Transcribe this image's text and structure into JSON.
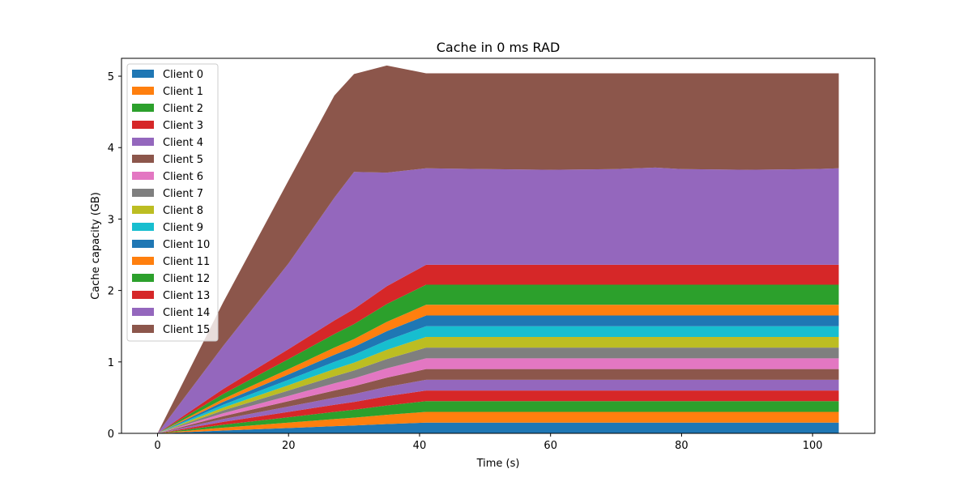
{
  "chart_data": {
    "type": "area",
    "stacked": true,
    "title": "Cache in  0 ms RAD",
    "xlabel": "Time (s)",
    "ylabel": "Cache capacity (GB)",
    "xlim": [
      -5.5,
      109.5
    ],
    "ylim": [
      0,
      5.25
    ],
    "xticks": [
      0,
      20,
      40,
      60,
      80,
      100
    ],
    "yticks": [
      0,
      1,
      2,
      3,
      4,
      5
    ],
    "grid": false,
    "legend": "upper-left",
    "x": [
      0,
      10,
      20,
      27,
      30,
      35,
      41,
      50,
      60,
      70,
      76,
      80,
      90,
      100,
      104
    ],
    "series": [
      {
        "name": "Client 0",
        "color": "#1f77b4",
        "values": [
          0,
          0.04,
          0.075,
          0.1,
          0.11,
          0.13,
          0.15,
          0.15,
          0.15,
          0.15,
          0.15,
          0.15,
          0.15,
          0.15,
          0.15
        ]
      },
      {
        "name": "Client 1",
        "color": "#ff7f0e",
        "values": [
          0,
          0.04,
          0.075,
          0.1,
          0.11,
          0.13,
          0.15,
          0.15,
          0.15,
          0.15,
          0.15,
          0.15,
          0.15,
          0.15,
          0.15
        ]
      },
      {
        "name": "Client 2",
        "color": "#2ca02c",
        "values": [
          0,
          0.04,
          0.075,
          0.1,
          0.11,
          0.13,
          0.15,
          0.15,
          0.15,
          0.15,
          0.15,
          0.15,
          0.15,
          0.15,
          0.15
        ]
      },
      {
        "name": "Client 3",
        "color": "#d62728",
        "values": [
          0,
          0.04,
          0.075,
          0.1,
          0.11,
          0.13,
          0.15,
          0.15,
          0.15,
          0.15,
          0.15,
          0.15,
          0.15,
          0.15,
          0.15
        ]
      },
      {
        "name": "Client 4",
        "color": "#9467bd",
        "values": [
          0,
          0.04,
          0.075,
          0.1,
          0.11,
          0.13,
          0.15,
          0.15,
          0.15,
          0.15,
          0.15,
          0.15,
          0.15,
          0.15,
          0.15
        ]
      },
      {
        "name": "Client 5",
        "color": "#8c564b",
        "values": [
          0,
          0.04,
          0.075,
          0.1,
          0.11,
          0.13,
          0.15,
          0.15,
          0.15,
          0.15,
          0.15,
          0.15,
          0.15,
          0.15,
          0.15
        ]
      },
      {
        "name": "Client 6",
        "color": "#e377c2",
        "values": [
          0,
          0.04,
          0.075,
          0.1,
          0.11,
          0.13,
          0.15,
          0.15,
          0.15,
          0.15,
          0.15,
          0.15,
          0.15,
          0.15,
          0.15
        ]
      },
      {
        "name": "Client 7",
        "color": "#7f7f7f",
        "values": [
          0,
          0.04,
          0.075,
          0.1,
          0.11,
          0.13,
          0.15,
          0.15,
          0.15,
          0.15,
          0.15,
          0.15,
          0.15,
          0.15,
          0.15
        ]
      },
      {
        "name": "Client 8",
        "color": "#bcbd22",
        "values": [
          0,
          0.04,
          0.075,
          0.1,
          0.11,
          0.13,
          0.15,
          0.15,
          0.15,
          0.15,
          0.15,
          0.15,
          0.15,
          0.15,
          0.15
        ]
      },
      {
        "name": "Client 9",
        "color": "#17becf",
        "values": [
          0,
          0.04,
          0.075,
          0.1,
          0.11,
          0.13,
          0.15,
          0.15,
          0.15,
          0.15,
          0.15,
          0.15,
          0.15,
          0.15,
          0.15
        ]
      },
      {
        "name": "Client 10",
        "color": "#1f77b4",
        "values": [
          0,
          0.04,
          0.075,
          0.1,
          0.11,
          0.13,
          0.15,
          0.15,
          0.15,
          0.15,
          0.15,
          0.15,
          0.15,
          0.15,
          0.15
        ]
      },
      {
        "name": "Client 11",
        "color": "#ff7f0e",
        "values": [
          0,
          0.04,
          0.075,
          0.1,
          0.11,
          0.13,
          0.15,
          0.15,
          0.15,
          0.15,
          0.15,
          0.15,
          0.15,
          0.15,
          0.15
        ]
      },
      {
        "name": "Client 12",
        "color": "#2ca02c",
        "values": [
          0,
          0.07,
          0.14,
          0.19,
          0.21,
          0.25,
          0.28,
          0.28,
          0.28,
          0.28,
          0.28,
          0.28,
          0.28,
          0.28,
          0.28
        ]
      },
      {
        "name": "Client 13",
        "color": "#d62728",
        "values": [
          0,
          0.07,
          0.14,
          0.19,
          0.21,
          0.25,
          0.28,
          0.28,
          0.28,
          0.28,
          0.28,
          0.28,
          0.28,
          0.28,
          0.28
        ]
      },
      {
        "name": "Client 14",
        "color": "#9467bd",
        "values": [
          0,
          0.6,
          1.2,
          1.72,
          1.92,
          1.59,
          1.35,
          1.34,
          1.33,
          1.34,
          1.36,
          1.34,
          1.33,
          1.34,
          1.35
        ]
      },
      {
        "name": "Client 15",
        "color": "#8c564b",
        "values": [
          0,
          0.61,
          1.16,
          1.43,
          1.37,
          1.5,
          1.33,
          1.34,
          1.35,
          1.34,
          1.32,
          1.34,
          1.35,
          1.34,
          1.33
        ]
      }
    ]
  }
}
